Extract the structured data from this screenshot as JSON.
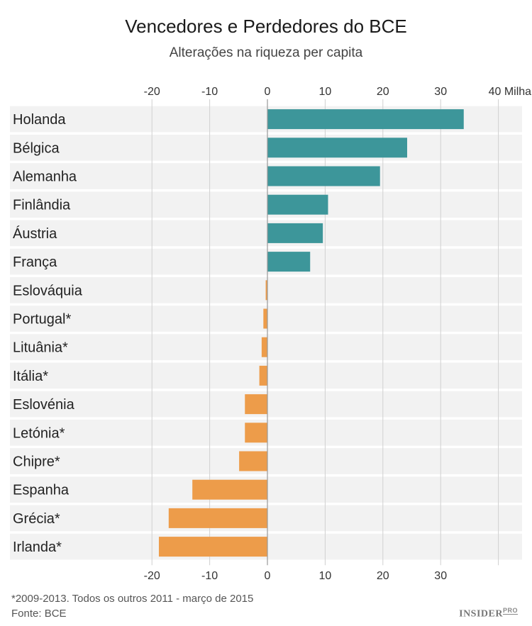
{
  "chart_data": {
    "type": "bar",
    "orientation": "horizontal",
    "title": "Vencedores e Perdedores do BCE",
    "subtitle": "Alterações na riqueza per capita",
    "xlabel": "",
    "ylabel": "",
    "unit_label": "Milhares",
    "xlim": [
      -22,
      44
    ],
    "xticks": [
      -20,
      -10,
      0,
      10,
      20,
      30,
      40
    ],
    "grid": true,
    "categories": [
      "Holanda",
      "Bélgica",
      "Alemanha",
      "Finlândia",
      "Áustria",
      "França",
      "Eslováquia",
      "Portugal*",
      "Lituânia*",
      "Itália*",
      "Eslovénia",
      "Letónia*",
      "Chipre*",
      "Espanha",
      "Grécia*",
      "Irlanda*"
    ],
    "values": [
      34,
      24.2,
      19.5,
      10.5,
      9.6,
      7.4,
      -0.3,
      -0.7,
      -1.0,
      -1.4,
      -3.9,
      -3.9,
      -4.9,
      -13.0,
      -17.1,
      -18.8
    ],
    "colors": {
      "positive": "#3d969a",
      "negative": "#ed9c4a",
      "row_band": "#f2f2f2",
      "grid": "#d0d0d0",
      "zero_line": "#999999"
    }
  },
  "footnote": "*2009-2013. Todos os outros 2011 - março de 2015",
  "source": "Fonte: BCE",
  "logo": {
    "text": "INSIDER",
    "badge": "PRO"
  }
}
